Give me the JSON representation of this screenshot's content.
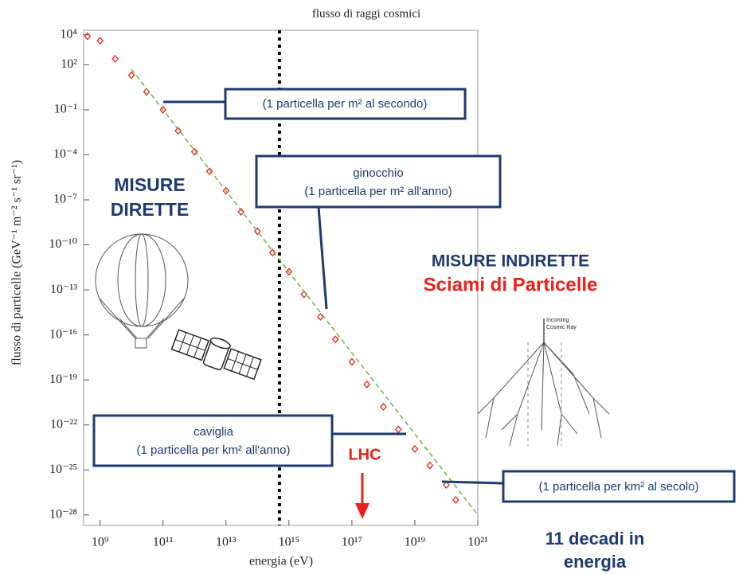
{
  "chart_data": {
    "type": "scatter",
    "title": "flusso di raggi cosmici",
    "x_label": "energia (eV)",
    "y_label": "flusso di particelle (GeV⁻¹ m⁻² s⁻¹ sr⁻¹)",
    "log_x": true,
    "log_y": true,
    "xlim": [
      300000000.0,
      1e+21
    ],
    "ylim": [
      2e-29,
      20000.0
    ],
    "xticks": [
      {
        "value": 1000000000.0,
        "label": "10⁹"
      },
      {
        "value": 100000000000.0,
        "label": "10¹¹"
      },
      {
        "value": 10000000000000.0,
        "label": "10¹³"
      },
      {
        "value": 1000000000000000.0,
        "label": "10¹⁵"
      },
      {
        "value": 1e+17,
        "label": "10¹⁷"
      },
      {
        "value": 1e+19,
        "label": "10¹⁹"
      },
      {
        "value": 1e+21,
        "label": "10²¹"
      }
    ],
    "yticks": [
      {
        "value": 10000.0,
        "label": "10⁴"
      },
      {
        "value": 100.0,
        "label": "10²"
      },
      {
        "value": 0.1,
        "label": "10⁻¹"
      },
      {
        "value": 0.0001,
        "label": "10⁻⁴"
      },
      {
        "value": 1e-07,
        "label": "10⁻⁷"
      },
      {
        "value": 1e-10,
        "label": "10⁻¹⁰"
      },
      {
        "value": 1e-13,
        "label": "10⁻¹³"
      },
      {
        "value": 1e-16,
        "label": "10⁻¹⁶"
      },
      {
        "value": 1e-19,
        "label": "10⁻¹⁹"
      },
      {
        "value": 1e-22,
        "label": "10⁻²²"
      },
      {
        "value": 1e-25,
        "label": "10⁻²⁵"
      },
      {
        "value": 1e-28,
        "label": "10⁻²⁸"
      }
    ],
    "marker_x": 500000000000000.0,
    "series": [
      {
        "color": "#e8221b",
        "x": [
          400000000.0,
          1000000000.0,
          3000000000.0,
          10000000000.0,
          30000000000.0,
          100000000000.0,
          300000000000.0,
          1000000000000.0,
          3000000000000.0,
          10000000000000.0,
          30000000000000.0,
          100000000000000.0,
          300000000000000.0,
          1000000000000000.0,
          3000000000000000.0,
          1e+16,
          3e+16,
          1e+17,
          3e+17,
          1e+18,
          3e+18,
          1e+19,
          3e+19,
          1e+20,
          2e+20
        ],
        "values": [
          8000.0,
          4000.0,
          250.0,
          20.0,
          1.6,
          0.1,
          0.004,
          0.00016,
          8e-06,
          4e-07,
          1.6e-08,
          8e-10,
          3e-11,
          1.6e-12,
          5e-14,
          1.6e-15,
          5e-17,
          1.6e-18,
          5e-20,
          1.6e-21,
          5e-23,
          2.5e-24,
          2e-25,
          1e-26,
          1e-27
        ]
      },
      {
        "color": "#6cb33f",
        "x": [
          10000000000.0,
          1e+21
        ],
        "values": [
          50.0,
          1e-28
        ]
      }
    ]
  },
  "annotations": {
    "direct": [
      "MISURE",
      "DIRETTE"
    ],
    "indirect": "MISURE INDIRETTE",
    "showers": "Sciami di Particelle",
    "per_second": "(1 particella per m² al secondo)",
    "knee": [
      "ginocchio",
      "(1 particella per m² all'anno)"
    ],
    "ankle": [
      "caviglia",
      "(1 particella per km² all'anno)"
    ],
    "per_century": "(1 particella per km² al secolo)",
    "lhc": "LHC",
    "decades": [
      "11 decadi in",
      "energia"
    ],
    "shower_label": [
      "Incoming",
      "Cosmic Ray"
    ]
  }
}
